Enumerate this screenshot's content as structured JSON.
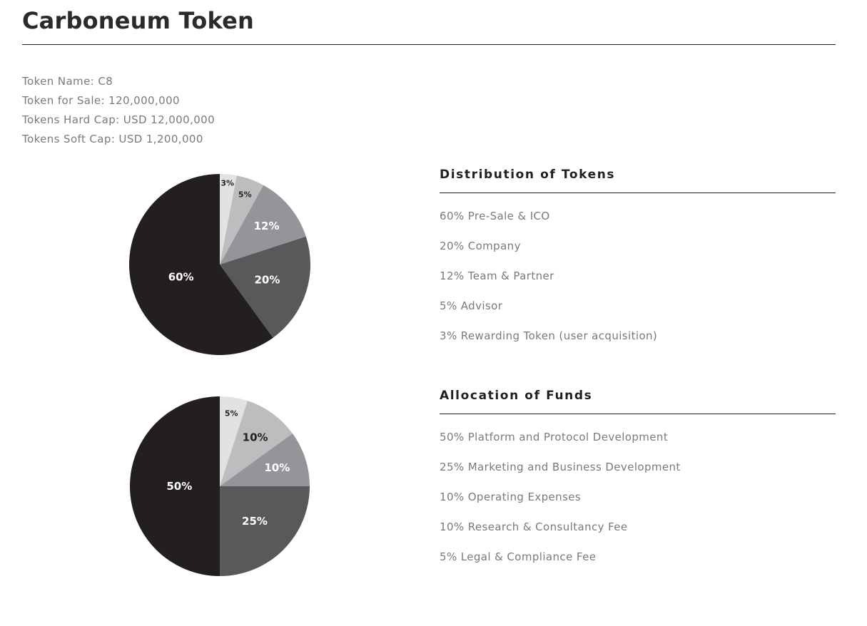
{
  "page": {
    "title": "Carboneum Token"
  },
  "token_info": [
    "Token Name: C8",
    "Token for Sale: 120,000,000",
    "Tokens Hard Cap: USD 12,000,000",
    "Tokens Soft Cap: USD 1,200,000"
  ],
  "distribution": {
    "heading": "Distribution of Tokens",
    "items": [
      "60% Pre-Sale & ICO",
      "20% Company",
      "12% Team & Partner",
      "5% Advisor",
      "3% Rewarding Token (user acquisition)"
    ]
  },
  "allocation": {
    "heading": "Allocation of Funds",
    "items": [
      "50% Platform and Protocol Development",
      "25% Marketing and Business Development",
      "10% Operating Expenses",
      "10% Research & Consultancy Fee",
      "5% Legal & Compliance Fee"
    ]
  },
  "chart_data": [
    {
      "type": "pie",
      "title": "",
      "start": "12 o'clock",
      "direction": "clockwise",
      "slices": [
        {
          "value": 3,
          "label": "3%",
          "color": "#e2e2e3",
          "label_color": "#231f20"
        },
        {
          "value": 5,
          "label": "5%",
          "color": "#bcbdbf",
          "label_color": "#231f20"
        },
        {
          "value": 12,
          "label": "12%",
          "color": "#939598",
          "label_color": "#ffffff"
        },
        {
          "value": 20,
          "label": "20%",
          "color": "#58595b",
          "label_color": "#ffffff"
        },
        {
          "value": 60,
          "label": "60%",
          "color": "#231f20",
          "label_color": "#ffffff"
        }
      ]
    },
    {
      "type": "pie",
      "title": "",
      "start": "12 o'clock",
      "direction": "clockwise",
      "slices": [
        {
          "value": 5,
          "label": "5%",
          "color": "#e2e2e3",
          "label_color": "#231f20"
        },
        {
          "value": 10,
          "label": "10%",
          "color": "#bcbdbf",
          "label_color": "#231f20"
        },
        {
          "value": 10,
          "label": "10%",
          "color": "#939598",
          "label_color": "#ffffff"
        },
        {
          "value": 25,
          "label": "25%",
          "color": "#58595b",
          "label_color": "#ffffff"
        },
        {
          "value": 50,
          "label": "50%",
          "color": "#231f20",
          "label_color": "#ffffff"
        }
      ]
    }
  ]
}
